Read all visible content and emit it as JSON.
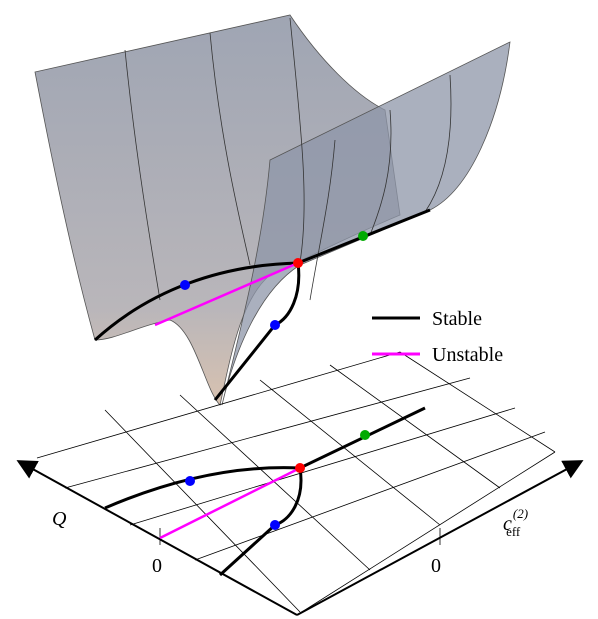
{
  "legend": {
    "items": [
      {
        "label": "Stable",
        "color": "#000000"
      },
      {
        "label": "Unstable",
        "color": "#ff00ff"
      }
    ]
  },
  "axes": {
    "q_label": "Q",
    "c_label": "c",
    "c_superscript": "(2)",
    "c_subscript": "eff",
    "q_tick": "0",
    "c_tick": "0"
  }
}
